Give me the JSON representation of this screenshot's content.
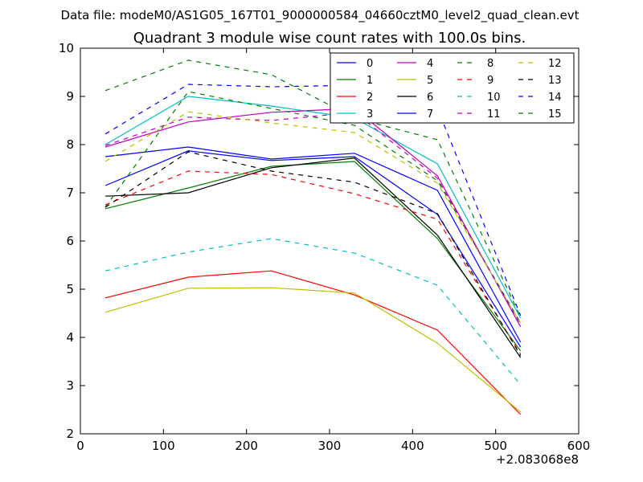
{
  "figure": {
    "suptitle": "Data file: modeM0/AS1G05_167T01_9000000584_04660cztM0_level2_quad_clean.evt"
  },
  "chart_data": {
    "type": "line",
    "title": "Quadrant 3 module wise count rates with 100.0s bins.",
    "xlabel": "",
    "ylabel": "",
    "x_offset_label": "+2.083068e8",
    "xlim": [
      0,
      600
    ],
    "ylim": [
      2,
      10
    ],
    "xticks": [
      "0",
      "100",
      "200",
      "300",
      "400",
      "500",
      "600"
    ],
    "yticks": [
      "2",
      "3",
      "4",
      "5",
      "6",
      "7",
      "8",
      "9",
      "10"
    ],
    "grid": false,
    "legend_position": "top-right",
    "x": [
      30,
      130,
      230,
      330,
      430,
      530
    ],
    "series": [
      {
        "name": "0",
        "color": "#0000ff",
        "dash": "solid",
        "values": [
          7.75,
          7.95,
          7.7,
          7.82,
          7.05,
          3.9
        ]
      },
      {
        "name": "1",
        "color": "#008000",
        "dash": "solid",
        "values": [
          6.67,
          7.1,
          7.55,
          7.65,
          6.05,
          3.72
        ]
      },
      {
        "name": "2",
        "color": "#ff0000",
        "dash": "solid",
        "values": [
          4.82,
          5.25,
          5.38,
          4.88,
          4.15,
          2.4
        ]
      },
      {
        "name": "3",
        "color": "#00bfbf",
        "dash": "solid",
        "values": [
          8.0,
          9.0,
          8.8,
          8.55,
          7.6,
          4.4
        ]
      },
      {
        "name": "4",
        "color": "#bf00bf",
        "dash": "solid",
        "values": [
          7.95,
          8.47,
          8.67,
          8.75,
          7.35,
          4.22
        ]
      },
      {
        "name": "5",
        "color": "#bfbf00",
        "dash": "solid",
        "values": [
          4.52,
          5.02,
          5.03,
          4.92,
          3.88,
          2.45
        ]
      },
      {
        "name": "6",
        "color": "#000000",
        "dash": "solid",
        "values": [
          6.93,
          7.0,
          7.52,
          7.72,
          6.12,
          3.58
        ]
      },
      {
        "name": "7",
        "color": "#0000ff",
        "dash": "solid",
        "values": [
          7.15,
          7.87,
          7.67,
          7.75,
          6.55,
          3.8
        ]
      },
      {
        "name": "8",
        "color": "#008000",
        "dash": "dashed",
        "values": [
          6.7,
          9.1,
          8.75,
          8.4,
          7.25,
          4.3
        ]
      },
      {
        "name": "9",
        "color": "#ff0000",
        "dash": "dashed",
        "values": [
          6.75,
          7.45,
          7.38,
          6.98,
          6.45,
          3.65
        ]
      },
      {
        "name": "10",
        "color": "#00bfbf",
        "dash": "dashed",
        "values": [
          5.38,
          5.77,
          6.05,
          5.75,
          5.08,
          3.02
        ]
      },
      {
        "name": "11",
        "color": "#bf00bf",
        "dash": "dashed",
        "values": [
          7.98,
          8.57,
          8.5,
          8.67,
          7.3,
          4.25
        ]
      },
      {
        "name": "12",
        "color": "#bfbf00",
        "dash": "dashed",
        "values": [
          7.65,
          8.68,
          8.45,
          8.25,
          7.2,
          4.3
        ]
      },
      {
        "name": "13",
        "color": "#000000",
        "dash": "dashed",
        "values": [
          6.7,
          7.85,
          7.45,
          7.22,
          6.57,
          3.62
        ]
      },
      {
        "name": "14",
        "color": "#0000ff",
        "dash": "dashed",
        "values": [
          8.22,
          9.25,
          9.2,
          9.23,
          8.75,
          4.45
        ]
      },
      {
        "name": "15",
        "color": "#008000",
        "dash": "dashed",
        "values": [
          9.12,
          9.75,
          9.45,
          8.55,
          8.1,
          4.42
        ]
      }
    ]
  }
}
